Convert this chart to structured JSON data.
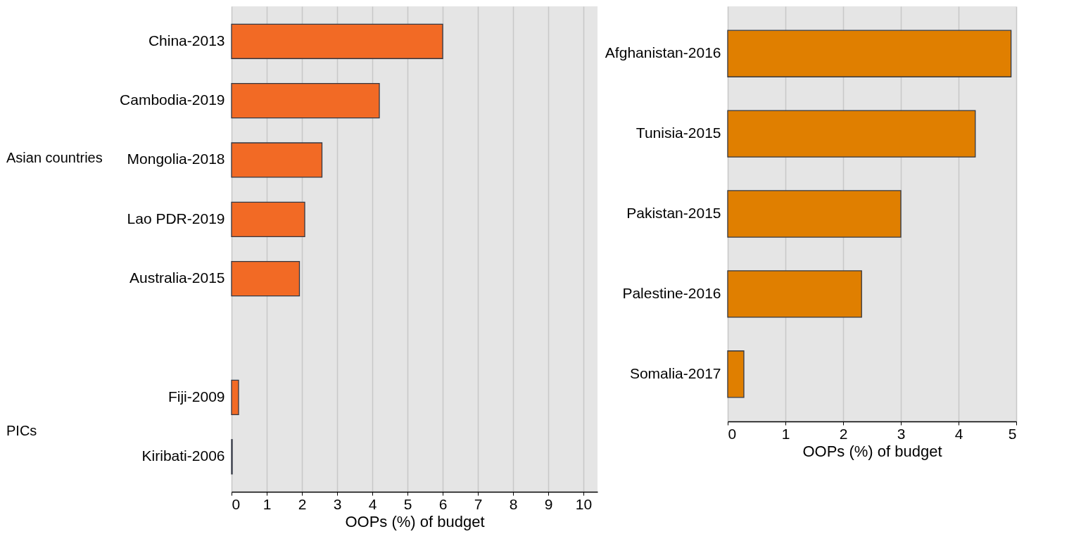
{
  "chart_data": [
    {
      "type": "bar",
      "orientation": "horizontal",
      "categories": [
        "China-2013",
        "Cambodia-2019",
        "Mongolia-2018",
        "Lao PDR-2019",
        "Australia-2015",
        null,
        "Fiji-2009",
        "Kiribati-2006"
      ],
      "series": [
        {
          "color": "#f26a25",
          "values": [
            6.0,
            4.2,
            2.57,
            2.08,
            1.93,
            null,
            0.2,
            0.02
          ]
        }
      ],
      "xlim": [
        0,
        10.4
      ],
      "xticks": [
        0,
        1,
        2,
        3,
        4,
        5,
        6,
        7,
        8,
        9,
        10
      ],
      "xlabel": "OOPs (%) of budget",
      "grid": "x",
      "annotations": [
        "Asian countries",
        "PICs"
      ]
    },
    {
      "type": "bar",
      "orientation": "horizontal",
      "categories": [
        "Afghanistan-2016",
        "Tunisia-2015",
        "Pakistan-2015",
        "Palestine-2016",
        "Somalia-2017"
      ],
      "series": [
        {
          "color": "#e07f00",
          "values": [
            4.91,
            4.29,
            3.0,
            2.32,
            0.28
          ]
        }
      ],
      "xlim": [
        0,
        5
      ],
      "xticks": [
        0,
        1,
        2,
        3,
        4,
        5
      ],
      "xlabel": "OOPs (%) of budget",
      "grid": "x"
    }
  ]
}
